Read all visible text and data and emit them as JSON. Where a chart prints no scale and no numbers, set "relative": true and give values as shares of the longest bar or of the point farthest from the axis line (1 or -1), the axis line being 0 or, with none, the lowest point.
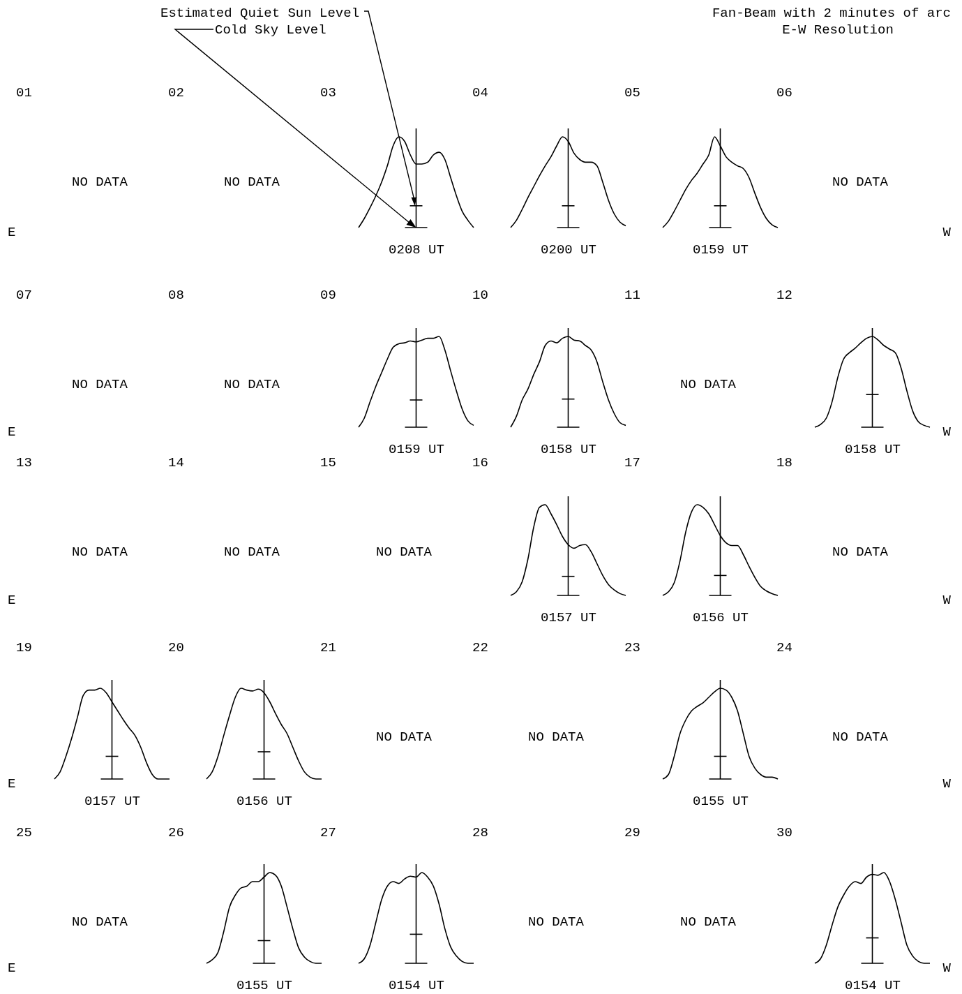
{
  "chart_data": [
    {
      "type": "other",
      "title": "Fan-Beam with 2 minutes of arc",
      "subtitle": "E-W Resolution"
    },
    {
      "type": "other",
      "title": "01",
      "ylabel": "E",
      "annotations": [
        "NO DATA"
      ]
    },
    {
      "type": "other",
      "title": "02",
      "annotations": [
        "NO DATA"
      ]
    },
    {
      "type": "line",
      "title": "03",
      "xlabel": "0208 UT",
      "relative": true,
      "categories": [
        null,
        null,
        null,
        null,
        null,
        null,
        null,
        null,
        null,
        null,
        null,
        null,
        null,
        null,
        null,
        null,
        null,
        null,
        null,
        null,
        null
      ],
      "values": [
        0,
        0.1,
        0.22,
        0.35,
        0.5,
        0.68,
        0.9,
        1.0,
        0.95,
        0.8,
        0.7,
        0.7,
        0.72,
        0.8,
        0.83,
        0.75,
        0.55,
        0.35,
        0.18,
        0.08,
        0
      ],
      "color": "#000000",
      "ref_lines": [
        {
          "axis": "y",
          "value": 0
        },
        {
          "axis": "y",
          "value": 0.24
        }
      ],
      "annotations": [
        "Estimated Quiet Sun Level",
        "Cold Sky Level"
      ]
    },
    {
      "type": "line",
      "title": "04",
      "xlabel": "0200 UT",
      "relative": true,
      "categories": [
        null,
        null,
        null,
        null,
        null,
        null,
        null,
        null,
        null,
        null,
        null,
        null,
        null,
        null,
        null,
        null,
        null,
        null,
        null,
        null,
        null
      ],
      "values": [
        0,
        0.08,
        0.2,
        0.33,
        0.45,
        0.57,
        0.68,
        0.78,
        0.9,
        1.0,
        0.95,
        0.82,
        0.75,
        0.72,
        0.72,
        0.68,
        0.5,
        0.3,
        0.15,
        0.06,
        0.02
      ],
      "color": "#000000",
      "ref_lines": [
        {
          "axis": "y",
          "value": 0
        },
        {
          "axis": "y",
          "value": 0.24
        }
      ]
    },
    {
      "type": "line",
      "title": "05",
      "xlabel": "0159 UT",
      "relative": true,
      "categories": [
        null,
        null,
        null,
        null,
        null,
        null,
        null,
        null,
        null,
        null,
        null,
        null,
        null,
        null,
        null,
        null,
        null,
        null,
        null,
        null,
        null
      ],
      "values": [
        0,
        0.07,
        0.18,
        0.3,
        0.42,
        0.52,
        0.6,
        0.7,
        0.8,
        1.0,
        0.9,
        0.78,
        0.72,
        0.68,
        0.65,
        0.55,
        0.38,
        0.22,
        0.1,
        0.03,
        0
      ],
      "color": "#000000",
      "ref_lines": [
        {
          "axis": "y",
          "value": 0
        },
        {
          "axis": "y",
          "value": 0.24
        }
      ]
    },
    {
      "type": "other",
      "title": "06",
      "y2label": "W",
      "annotations": [
        "NO DATA"
      ]
    },
    {
      "type": "other",
      "title": "07",
      "ylabel": "E",
      "annotations": [
        "NO DATA"
      ]
    },
    {
      "type": "other",
      "title": "08",
      "annotations": [
        "NO DATA"
      ]
    },
    {
      "type": "line",
      "title": "09",
      "xlabel": "0159 UT",
      "relative": true,
      "categories": [
        null,
        null,
        null,
        null,
        null,
        null,
        null,
        null,
        null,
        null,
        null,
        null,
        null,
        null,
        null,
        null,
        null,
        null,
        null,
        null,
        null
      ],
      "values": [
        0,
        0.1,
        0.28,
        0.45,
        0.6,
        0.75,
        0.88,
        0.92,
        0.93,
        0.95,
        0.94,
        0.96,
        0.98,
        0.98,
        1.0,
        0.85,
        0.62,
        0.4,
        0.2,
        0.07,
        0.02
      ],
      "color": "#000000",
      "ref_lines": [
        {
          "axis": "y",
          "value": 0
        },
        {
          "axis": "y",
          "value": 0.3
        }
      ]
    },
    {
      "type": "line",
      "title": "10",
      "xlabel": "0158 UT",
      "relative": true,
      "categories": [
        null,
        null,
        null,
        null,
        null,
        null,
        null,
        null,
        null,
        null,
        null,
        null,
        null,
        null,
        null,
        null,
        null,
        null,
        null,
        null,
        null
      ],
      "values": [
        0,
        0.12,
        0.3,
        0.42,
        0.58,
        0.72,
        0.9,
        0.95,
        0.93,
        0.98,
        1.0,
        0.96,
        0.95,
        0.9,
        0.85,
        0.72,
        0.5,
        0.3,
        0.15,
        0.05,
        0.02
      ],
      "color": "#000000",
      "ref_lines": [
        {
          "axis": "y",
          "value": 0
        },
        {
          "axis": "y",
          "value": 0.31
        }
      ]
    },
    {
      "type": "other",
      "title": "11",
      "annotations": [
        "NO DATA"
      ]
    },
    {
      "type": "line",
      "title": "12",
      "xlabel": "0158 UT",
      "y2label": "W",
      "relative": true,
      "categories": [
        null,
        null,
        null,
        null,
        null,
        null,
        null,
        null,
        null,
        null,
        null,
        null,
        null,
        null,
        null,
        null,
        null,
        null,
        null,
        null,
        null
      ],
      "values": [
        0,
        0.03,
        0.1,
        0.28,
        0.55,
        0.75,
        0.82,
        0.87,
        0.93,
        0.98,
        1.0,
        0.96,
        0.9,
        0.86,
        0.82,
        0.65,
        0.4,
        0.18,
        0.06,
        0.02,
        0
      ],
      "color": "#000000",
      "ref_lines": [
        {
          "axis": "y",
          "value": 0
        },
        {
          "axis": "y",
          "value": 0.36
        }
      ]
    },
    {
      "type": "other",
      "title": "13",
      "ylabel": "E",
      "annotations": [
        "NO DATA"
      ]
    },
    {
      "type": "other",
      "title": "14",
      "annotations": [
        "NO DATA"
      ]
    },
    {
      "type": "other",
      "title": "15",
      "annotations": [
        "NO DATA"
      ]
    },
    {
      "type": "line",
      "title": "16",
      "xlabel": "0157 UT",
      "relative": true,
      "categories": [
        null,
        null,
        null,
        null,
        null,
        null,
        null,
        null,
        null,
        null,
        null,
        null,
        null,
        null,
        null,
        null,
        null,
        null,
        null,
        null,
        null
      ],
      "values": [
        0,
        0.04,
        0.15,
        0.4,
        0.75,
        0.97,
        1.0,
        0.9,
        0.78,
        0.65,
        0.56,
        0.52,
        0.55,
        0.56,
        0.48,
        0.35,
        0.22,
        0.12,
        0.06,
        0.02,
        0
      ],
      "color": "#000000",
      "ref_lines": [
        {
          "axis": "y",
          "value": 0
        },
        {
          "axis": "y",
          "value": 0.21
        }
      ]
    },
    {
      "type": "line",
      "title": "17",
      "xlabel": "0156 UT",
      "relative": true,
      "categories": [
        null,
        null,
        null,
        null,
        null,
        null,
        null,
        null,
        null,
        null,
        null,
        null,
        null,
        null,
        null,
        null,
        null,
        null,
        null,
        null,
        null
      ],
      "values": [
        0,
        0.04,
        0.14,
        0.38,
        0.7,
        0.92,
        1.0,
        0.97,
        0.9,
        0.78,
        0.66,
        0.58,
        0.55,
        0.55,
        0.45,
        0.32,
        0.2,
        0.1,
        0.05,
        0.02,
        0
      ],
      "color": "#000000",
      "ref_lines": [
        {
          "axis": "y",
          "value": 0
        },
        {
          "axis": "y",
          "value": 0.22
        }
      ]
    },
    {
      "type": "other",
      "title": "18",
      "y2label": "W",
      "annotations": [
        "NO DATA"
      ]
    },
    {
      "type": "line",
      "title": "19",
      "xlabel": "0157 UT",
      "ylabel": "E",
      "relative": true,
      "categories": [
        null,
        null,
        null,
        null,
        null,
        null,
        null,
        null,
        null,
        null,
        null,
        null,
        null,
        null,
        null,
        null,
        null,
        null,
        null,
        null,
        null
      ],
      "values": [
        0,
        0.08,
        0.25,
        0.45,
        0.68,
        0.92,
        0.98,
        0.98,
        1.0,
        0.95,
        0.85,
        0.75,
        0.65,
        0.56,
        0.48,
        0.35,
        0.18,
        0.05,
        0,
        0,
        0
      ],
      "color": "#000000",
      "ref_lines": [
        {
          "axis": "y",
          "value": 0
        },
        {
          "axis": "y",
          "value": 0.25
        }
      ]
    },
    {
      "type": "line",
      "title": "20",
      "xlabel": "0156 UT",
      "relative": true,
      "categories": [
        null,
        null,
        null,
        null,
        null,
        null,
        null,
        null,
        null,
        null,
        null,
        null,
        null,
        null,
        null,
        null,
        null,
        null,
        null,
        null,
        null
      ],
      "values": [
        0,
        0.08,
        0.25,
        0.48,
        0.7,
        0.9,
        1.0,
        0.98,
        0.97,
        0.99,
        0.95,
        0.85,
        0.72,
        0.6,
        0.5,
        0.35,
        0.2,
        0.08,
        0.02,
        0,
        0
      ],
      "color": "#000000",
      "ref_lines": [
        {
          "axis": "y",
          "value": 0
        },
        {
          "axis": "y",
          "value": 0.3
        }
      ]
    },
    {
      "type": "other",
      "title": "21",
      "annotations": [
        "NO DATA"
      ]
    },
    {
      "type": "other",
      "title": "22",
      "annotations": [
        "NO DATA"
      ]
    },
    {
      "type": "line",
      "title": "23",
      "xlabel": "0155 UT",
      "relative": true,
      "categories": [
        null,
        null,
        null,
        null,
        null,
        null,
        null,
        null,
        null,
        null,
        null,
        null,
        null,
        null,
        null,
        null,
        null,
        null,
        null,
        null,
        null
      ],
      "values": [
        0,
        0.05,
        0.25,
        0.5,
        0.65,
        0.75,
        0.8,
        0.84,
        0.9,
        0.96,
        1.0,
        0.98,
        0.9,
        0.75,
        0.5,
        0.25,
        0.12,
        0.05,
        0.02,
        0.02,
        0
      ],
      "color": "#000000",
      "ref_lines": [
        {
          "axis": "y",
          "value": 0
        },
        {
          "axis": "y",
          "value": 0.25
        }
      ]
    },
    {
      "type": "other",
      "title": "24",
      "y2label": "W",
      "annotations": [
        "NO DATA"
      ]
    },
    {
      "type": "other",
      "title": "25",
      "ylabel": "E",
      "annotations": [
        "NO DATA"
      ]
    },
    {
      "type": "line",
      "title": "26",
      "xlabel": "0155 UT",
      "relative": true,
      "categories": [
        null,
        null,
        null,
        null,
        null,
        null,
        null,
        null,
        null,
        null,
        null,
        null,
        null,
        null,
        null,
        null,
        null,
        null,
        null,
        null,
        null
      ],
      "values": [
        0,
        0.04,
        0.12,
        0.35,
        0.62,
        0.75,
        0.83,
        0.85,
        0.9,
        0.9,
        0.95,
        1.0,
        0.97,
        0.85,
        0.62,
        0.38,
        0.17,
        0.07,
        0.02,
        0,
        0
      ],
      "color": "#000000",
      "ref_lines": [
        {
          "axis": "y",
          "value": 0
        },
        {
          "axis": "y",
          "value": 0.25
        }
      ]
    },
    {
      "type": "line",
      "title": "27",
      "xlabel": "0154 UT",
      "relative": true,
      "categories": [
        null,
        null,
        null,
        null,
        null,
        null,
        null,
        null,
        null,
        null,
        null,
        null,
        null,
        null,
        null,
        null,
        null,
        null,
        null,
        null,
        null
      ],
      "values": [
        0,
        0.05,
        0.2,
        0.45,
        0.7,
        0.85,
        0.9,
        0.88,
        0.93,
        0.96,
        0.95,
        1.0,
        0.95,
        0.85,
        0.65,
        0.38,
        0.18,
        0.08,
        0.02,
        0,
        0
      ],
      "color": "#000000",
      "ref_lines": [
        {
          "axis": "y",
          "value": 0
        },
        {
          "axis": "y",
          "value": 0.32
        }
      ]
    },
    {
      "type": "other",
      "title": "28",
      "annotations": [
        "NO DATA"
      ]
    },
    {
      "type": "other",
      "title": "29",
      "annotations": [
        "NO DATA"
      ]
    },
    {
      "type": "line",
      "title": "30",
      "xlabel": "0154 UT",
      "y2label": "W",
      "relative": true,
      "categories": [
        null,
        null,
        null,
        null,
        null,
        null,
        null,
        null,
        null,
        null,
        null,
        null,
        null,
        null,
        null,
        null,
        null,
        null,
        null,
        null,
        null
      ],
      "values": [
        0,
        0.05,
        0.2,
        0.42,
        0.62,
        0.75,
        0.85,
        0.9,
        0.88,
        0.95,
        0.98,
        0.97,
        1.0,
        0.9,
        0.7,
        0.45,
        0.2,
        0.08,
        0.02,
        0,
        0
      ],
      "color": "#000000",
      "ref_lines": [
        {
          "axis": "y",
          "value": 0
        },
        {
          "axis": "y",
          "value": 0.28
        }
      ]
    }
  ]
}
